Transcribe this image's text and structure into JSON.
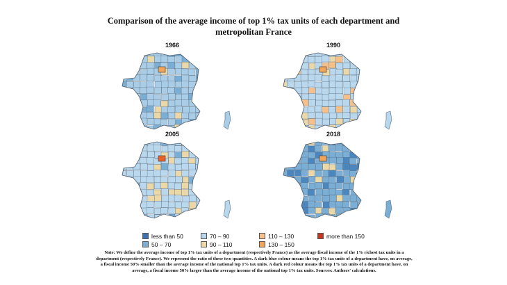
{
  "title_line1": "Comparison of the average income of top 1% tax units of each department and",
  "title_line2": "metropolitan France",
  "panels": [
    {
      "year": "1966",
      "dominant": "#a9cde6",
      "highlight": [
        "#7aaed4",
        "#ecd8a6",
        "#f2a55a"
      ]
    },
    {
      "year": "1990",
      "dominant": "#b9d8ee",
      "highlight": [
        "#ecd8a6",
        "#f5c08a",
        "#f2a55a"
      ]
    },
    {
      "year": "2005",
      "dominant": "#b9d8ee",
      "highlight": [
        "#ecd8a6",
        "#7aaed4",
        "#e8632a"
      ]
    },
    {
      "year": "2018",
      "dominant": "#7aaed4",
      "highlight": [
        "#4b86bf",
        "#ecd8a6",
        "#f2a55a"
      ]
    }
  ],
  "legend": [
    {
      "label": "less than 50",
      "color": "#3f6fae"
    },
    {
      "label": "50 – 70",
      "color": "#7aaed4"
    },
    {
      "label": "70 – 90",
      "color": "#b9d8ee"
    },
    {
      "label": "90 – 110",
      "color": "#ecd8a6"
    },
    {
      "label": "110 – 130",
      "color": "#f5c08a"
    },
    {
      "label": "130 – 150",
      "color": "#f2a55a"
    },
    {
      "label": "more than 150",
      "color": "#c8351f"
    }
  ],
  "note": "Note: We define the average income of top 1% tax units of a department (respectively France) as the average fiscal income of the 1% richest tax units in a department (respectively France). We represent the ratio of these two quantities. A dark blue colour means the top 1% tax units of a department have, on average, a fiscal income 50% smaller than the average income of the national top 1% tax units. A dark red colour means the top 1% tax units of a department have, on average, a fiscal income 50% larger than the average income of the national top 1% tax units. Sources: Authors' calculations."
}
